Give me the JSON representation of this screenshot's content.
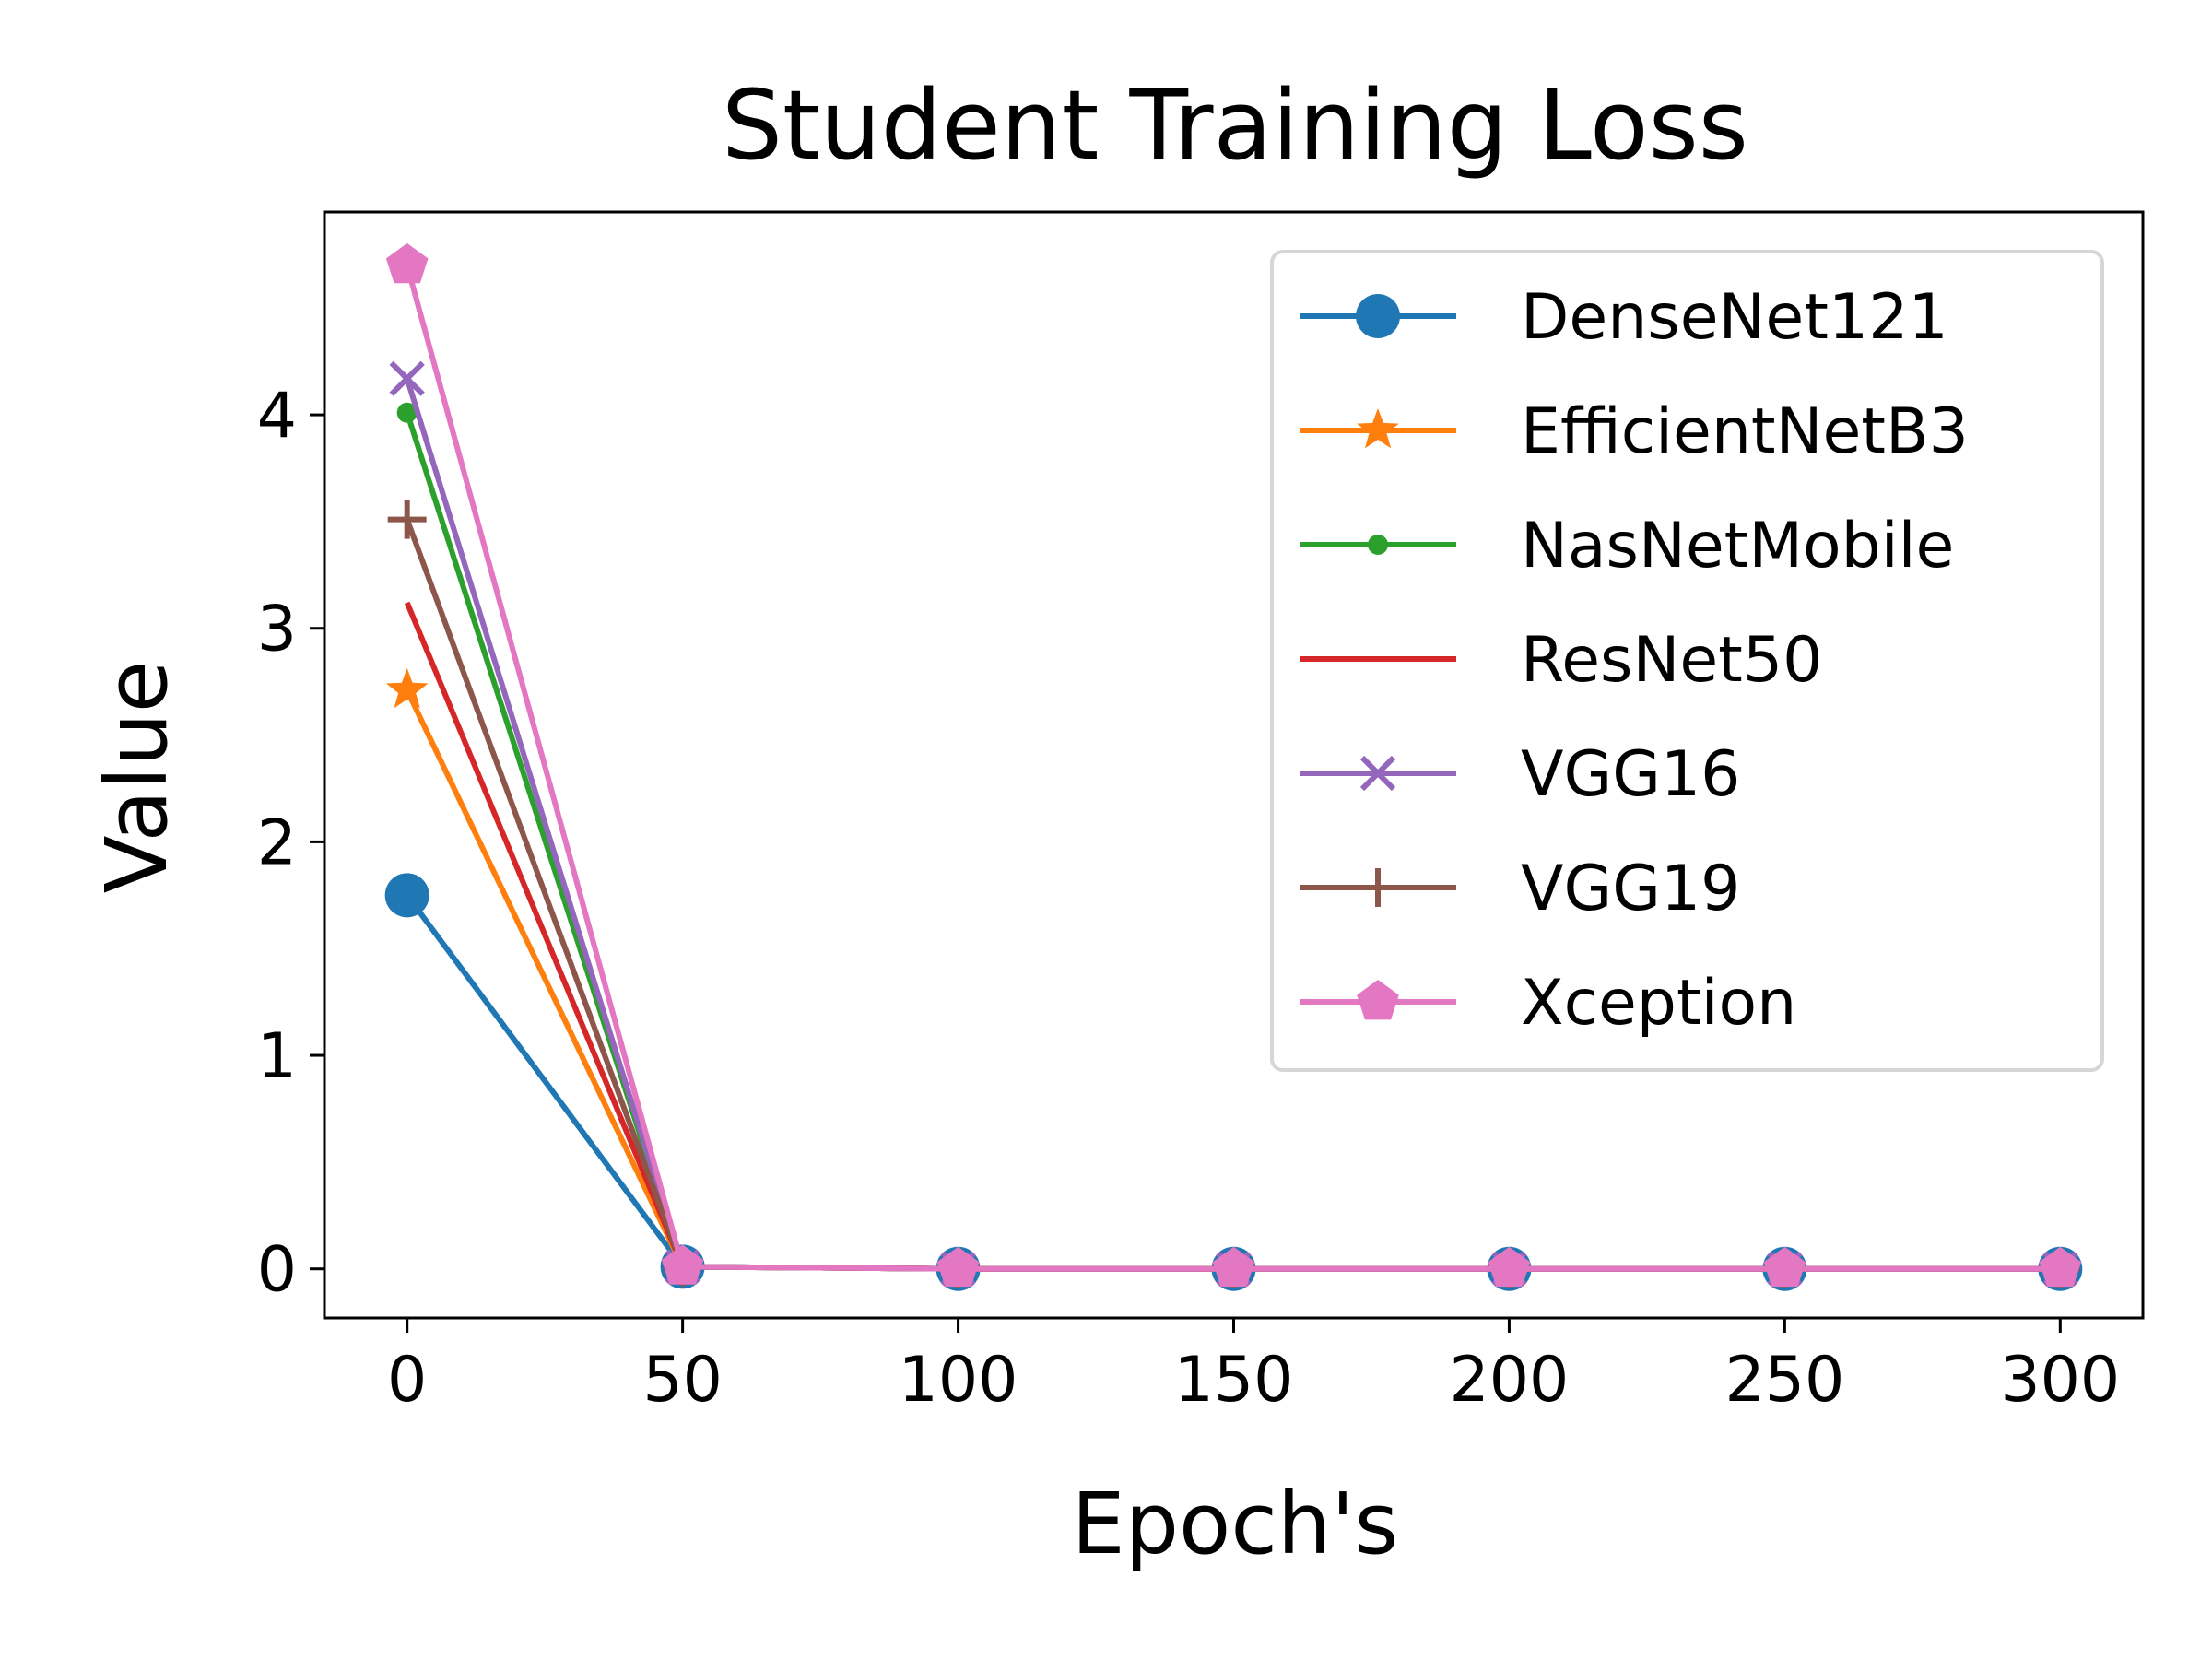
{
  "chart_data": {
    "type": "line",
    "title": "Student Training Loss",
    "xlabel": "Epoch's",
    "ylabel": "Value",
    "x": [
      0,
      50,
      100,
      150,
      200,
      250,
      300
    ],
    "xlim": [
      -15,
      315
    ],
    "ylim": [
      -0.23,
      4.95
    ],
    "xticks": [
      0,
      50,
      100,
      150,
      200,
      250,
      300
    ],
    "yticks": [
      0,
      1,
      2,
      3,
      4
    ],
    "grid": false,
    "legend_position": "top-right",
    "series": [
      {
        "name": "DenseNet121",
        "color": "#1f77b4",
        "marker": "circle",
        "values": [
          1.75,
          0.01,
          0.0,
          0.0,
          0.0,
          0.0,
          0.0
        ]
      },
      {
        "name": "EfficientNetB3",
        "color": "#ff7f0e",
        "marker": "star",
        "values": [
          2.71,
          0.01,
          0.0,
          0.0,
          0.0,
          0.0,
          0.0
        ]
      },
      {
        "name": "NasNetMobile",
        "color": "#2ca02c",
        "marker": "point",
        "values": [
          4.01,
          0.01,
          0.0,
          0.0,
          0.0,
          0.0,
          0.0
        ]
      },
      {
        "name": "ResNet50",
        "color": "#d62728",
        "marker": "none",
        "values": [
          3.12,
          0.01,
          0.0,
          0.0,
          0.0,
          0.0,
          0.0
        ]
      },
      {
        "name": "VGG16",
        "color": "#9467bd",
        "marker": "x",
        "values": [
          4.17,
          0.01,
          0.0,
          0.0,
          0.0,
          0.0,
          0.0
        ]
      },
      {
        "name": "VGG19",
        "color": "#8c564b",
        "marker": "plus",
        "values": [
          3.51,
          0.01,
          0.0,
          0.0,
          0.0,
          0.0,
          0.0
        ]
      },
      {
        "name": "Xception",
        "color": "#e377c2",
        "marker": "pentagon",
        "values": [
          4.7,
          0.01,
          0.0,
          0.0,
          0.0,
          0.0,
          0.0
        ]
      }
    ]
  }
}
